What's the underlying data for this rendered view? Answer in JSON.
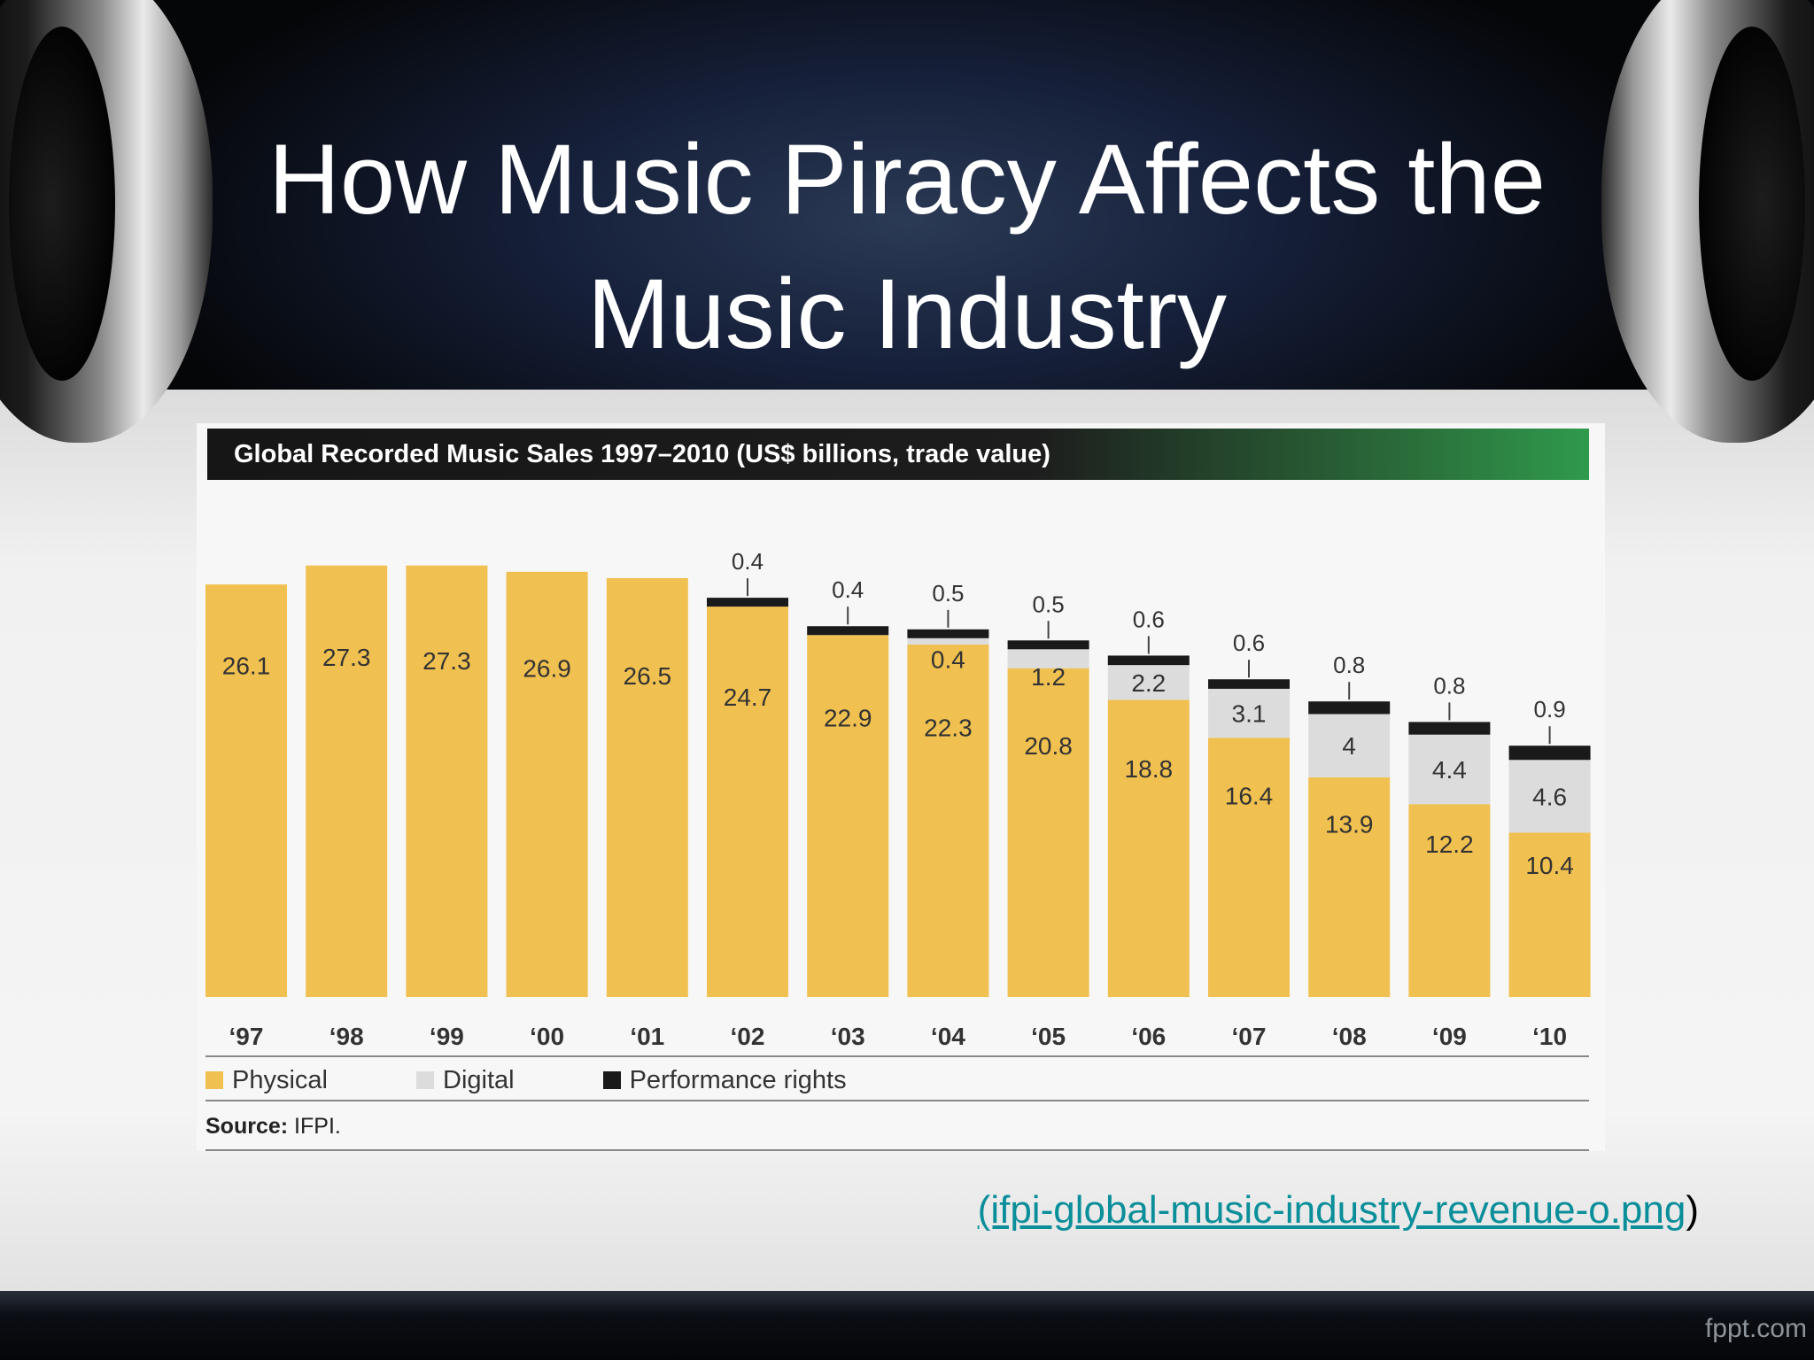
{
  "slide": {
    "title": "How Music Piracy Affects the Music Industry",
    "link_text": "(ifpi-global-music-industry-revenue-o.png",
    "link_close": ")",
    "watermark": "fppt.com"
  },
  "chart_data": {
    "type": "bar",
    "stacked": true,
    "title": "Global Recorded Music Sales 1997–2010 (US$ billions, trade value)",
    "categories": [
      "‘97",
      "‘98",
      "‘99",
      "‘00",
      "‘01",
      "‘02",
      "‘03",
      "‘04",
      "‘05",
      "‘06",
      "‘07",
      "‘08",
      "‘09",
      "‘10"
    ],
    "series": [
      {
        "name": "Physical",
        "color": "#f0c050",
        "values": [
          26.1,
          27.3,
          27.3,
          26.9,
          26.5,
          24.7,
          22.9,
          22.3,
          20.8,
          18.8,
          16.4,
          13.9,
          12.2,
          10.4
        ]
      },
      {
        "name": "Digital",
        "color": "#dcdcdc",
        "values": [
          null,
          null,
          null,
          null,
          null,
          null,
          null,
          0.4,
          1.2,
          2.2,
          3.1,
          4.0,
          4.4,
          4.6
        ]
      },
      {
        "name": "Performance rights",
        "color": "#1a1a1a",
        "values": [
          null,
          null,
          null,
          null,
          null,
          0.4,
          0.4,
          0.5,
          0.5,
          0.6,
          0.6,
          0.8,
          0.8,
          0.9
        ]
      }
    ],
    "legend_position": "bottom-left",
    "source_label": "Source:",
    "source_text": "IFPI."
  }
}
